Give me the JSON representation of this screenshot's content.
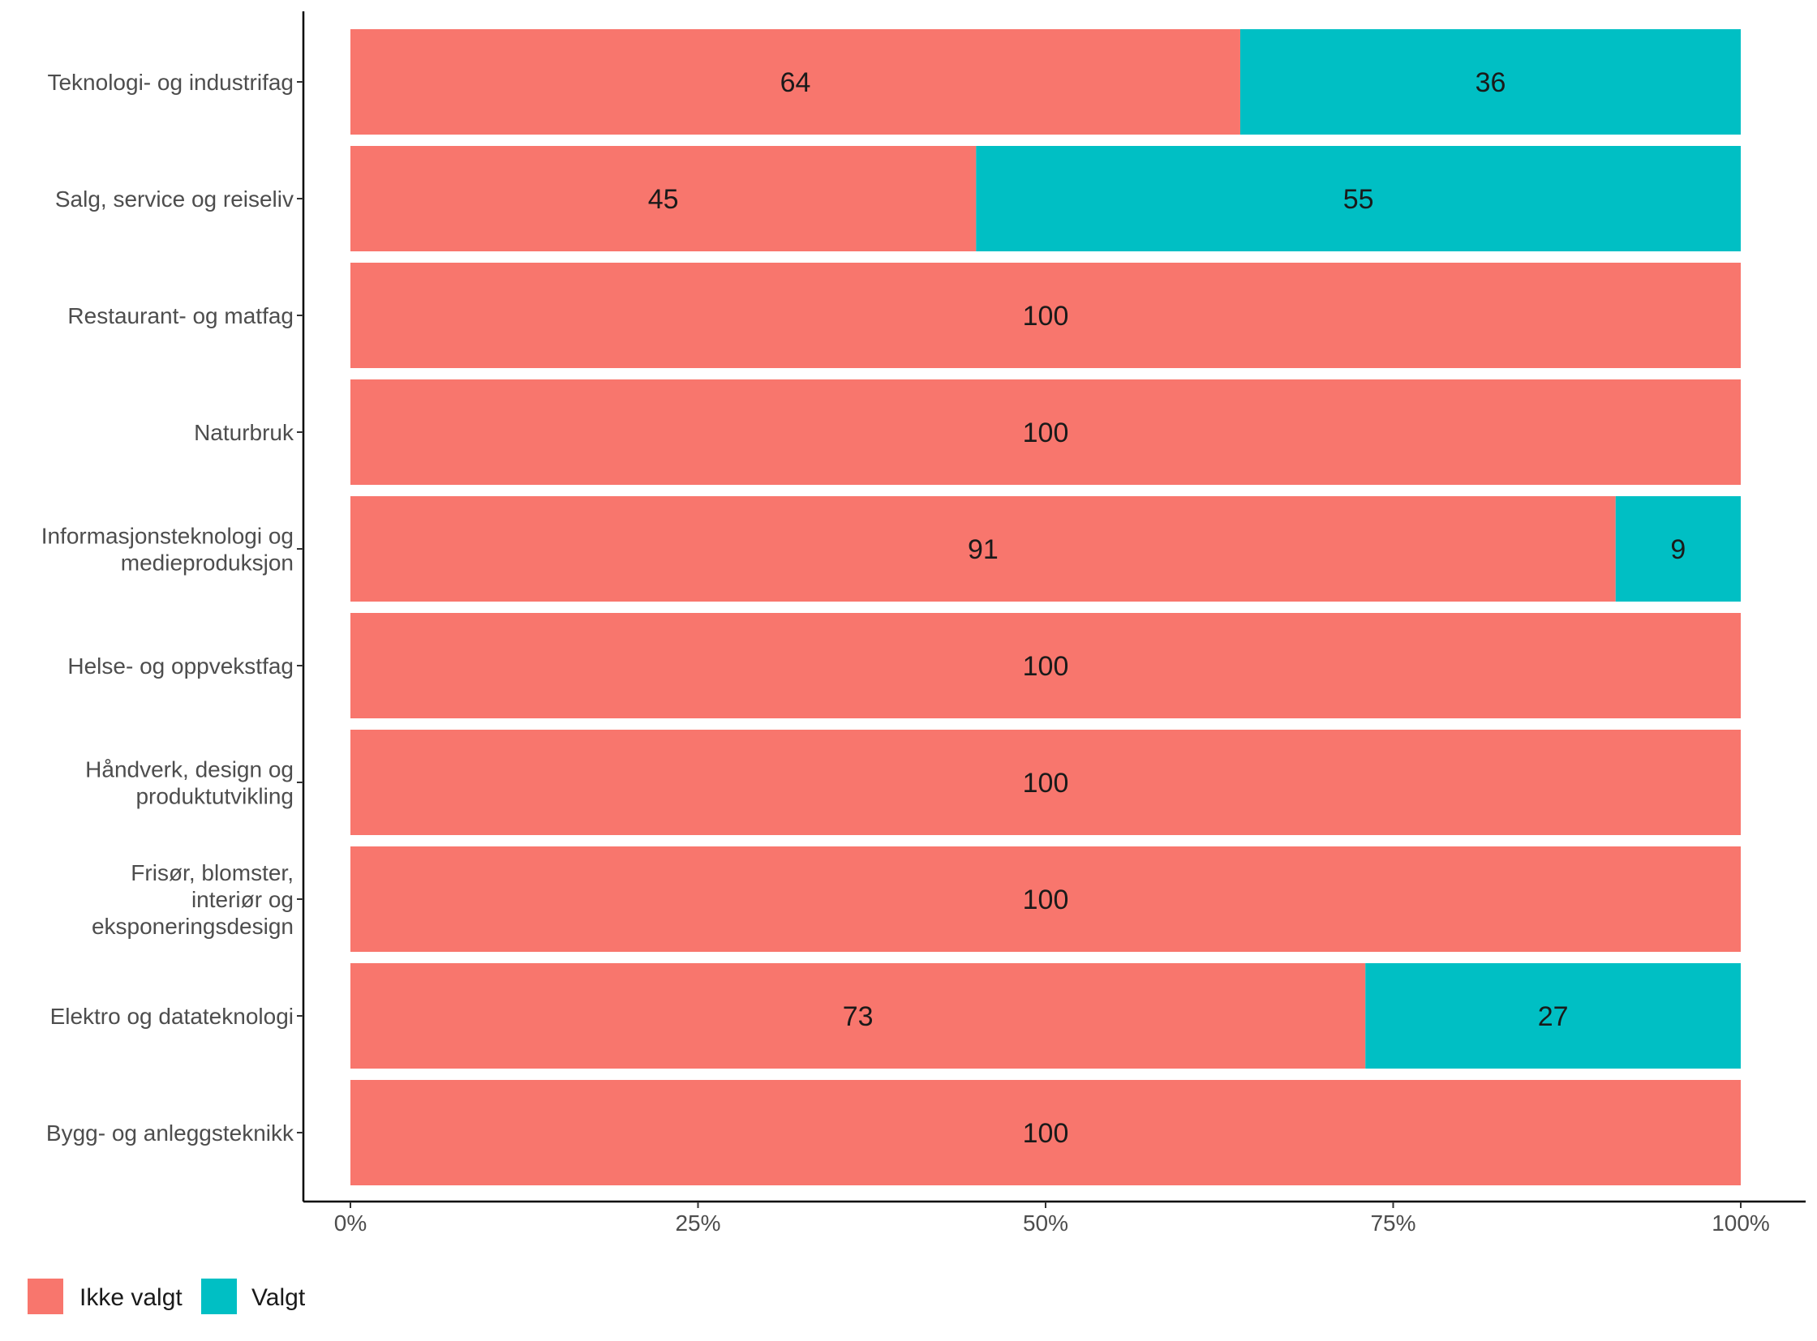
{
  "chart_data": {
    "type": "bar",
    "orientation": "horizontal",
    "stacked": true,
    "categories": [
      "Teknologi- og industrifag",
      "Salg, service og reiseliv",
      "Restaurant- og matfag",
      "Naturbruk",
      "Informasjonsteknologi og medieproduksjon",
      "Helse- og oppvekstfag",
      "Håndverk, design og produktutvikling",
      "Frisør, blomster, interiør og eksponeringsdesign",
      "Elektro og datateknologi",
      "Bygg- og anleggsteknikk"
    ],
    "category_lines": [
      [
        "Teknologi- og industrifag"
      ],
      [
        "Salg, service og reiseliv"
      ],
      [
        "Restaurant- og matfag"
      ],
      [
        "Naturbruk"
      ],
      [
        "Informasjonsteknologi og",
        "medieproduksjon"
      ],
      [
        "Helse- og oppvekstfag"
      ],
      [
        "Håndverk, design og",
        "produktutvikling"
      ],
      [
        "Frisør, blomster,",
        "interiør og",
        "eksponeringsdesign"
      ],
      [
        "Elektro og datateknologi"
      ],
      [
        "Bygg- og anleggsteknikk"
      ]
    ],
    "series": [
      {
        "name": "Ikke valgt",
        "color": "#F8766D",
        "values": [
          64,
          45,
          100,
          100,
          91,
          100,
          100,
          100,
          73,
          100
        ]
      },
      {
        "name": "Valgt",
        "color": "#00BFC4",
        "values": [
          36,
          55,
          0,
          0,
          9,
          0,
          0,
          0,
          27,
          0
        ]
      }
    ],
    "x_ticks": [
      "0%",
      "25%",
      "50%",
      "75%",
      "100%"
    ],
    "xlim": [
      0,
      100
    ],
    "title": "",
    "xlabel": "",
    "ylabel": "",
    "grid": false,
    "legend_position": "bottom-left"
  }
}
